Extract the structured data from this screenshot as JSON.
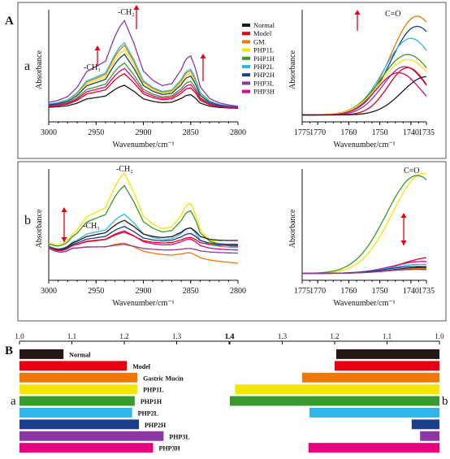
{
  "figure": {
    "panel_labels": [
      "A",
      "B"
    ],
    "row_labels": [
      "a",
      "b"
    ],
    "bar_side_labels": [
      "a",
      "b"
    ],
    "ch2": "-CH₂",
    "ch3": "-CH₃",
    "co": "C=O"
  },
  "colors": {
    "Normal": "#231815",
    "Model": "#e60012",
    "GM": "#ee7800",
    "PHP1L": "#f4e600",
    "PHP1H": "#3a9a2e",
    "PHP2L": "#2fb7e8",
    "PHP2H": "#1a3d8c",
    "PHP3L": "#8c37a5",
    "PHP3H": "#e4007f",
    "arrow": "#e60012"
  },
  "legend": {
    "items": [
      {
        "label": "Normal",
        "key": "Normal"
      },
      {
        "label": "Model",
        "key": "Model"
      },
      {
        "label": "GM",
        "key": "GM"
      },
      {
        "label": "PHP1L",
        "key": "PHP1L"
      },
      {
        "label": "PHP1H",
        "key": "PHP1H"
      },
      {
        "label": "PHP2L",
        "key": "PHP2L"
      },
      {
        "label": "PHP2H",
        "key": "PHP2H"
      },
      {
        "label": "PHP3L",
        "key": "PHP3L"
      },
      {
        "label": "PHP3H",
        "key": "PHP3H"
      }
    ]
  },
  "chart_data": [
    {
      "id": "Aa-left",
      "type": "line",
      "xlabel": "Wavenumber/cm⁻¹",
      "ylabel": "Absorbance",
      "xlim": [
        3000,
        2800
      ],
      "ylim": [
        0,
        1
      ],
      "xticks": [
        "3000",
        "2950",
        "2900",
        "2850",
        "2800"
      ],
      "x": [
        3000,
        2990,
        2980,
        2970,
        2960,
        2950,
        2940,
        2930,
        2925,
        2920,
        2910,
        2900,
        2890,
        2880,
        2870,
        2860,
        2855,
        2850,
        2845,
        2840,
        2830,
        2820,
        2810,
        2800
      ],
      "profile": [
        0.0,
        0.02,
        0.06,
        0.17,
        0.36,
        0.42,
        0.48,
        0.8,
        0.92,
        1.0,
        0.72,
        0.38,
        0.27,
        0.21,
        0.24,
        0.42,
        0.56,
        0.6,
        0.45,
        0.22,
        0.08,
        0.03,
        0.01,
        0.0
      ],
      "series": [
        {
          "key": "Normal",
          "scale": 0.27
        },
        {
          "key": "Model",
          "scale": 0.4
        },
        {
          "key": "GM",
          "scale": 0.72
        },
        {
          "key": "PHP1L",
          "scale": 0.67
        },
        {
          "key": "PHP1H",
          "scale": 0.52
        },
        {
          "key": "PHP2L",
          "scale": 0.75
        },
        {
          "key": "PHP2H",
          "scale": 0.62
        },
        {
          "key": "PHP3L",
          "scale": 1.0
        },
        {
          "key": "PHP3H",
          "scale": 0.46
        }
      ]
    },
    {
      "id": "Aa-right",
      "type": "line",
      "xlabel": "Wavenumber/cm⁻¹",
      "ylabel": "Absorbance",
      "xlim": [
        1775,
        1735
      ],
      "ylim": [
        0,
        1
      ],
      "xticks": [
        "1775",
        "1770",
        "1760",
        "1750",
        "1740",
        "1735"
      ],
      "series": [
        {
          "key": "GM",
          "peak": 0.98,
          "center": 1738,
          "width": 12
        },
        {
          "key": "PHP2H",
          "peak": 0.88,
          "center": 1738,
          "width": 12
        },
        {
          "key": "PHP2L",
          "peak": 0.76,
          "center": 1740,
          "width": 12
        },
        {
          "key": "PHP1H",
          "peak": 0.6,
          "center": 1741,
          "width": 12
        },
        {
          "key": "PHP1L",
          "peak": 0.55,
          "center": 1741,
          "width": 12
        },
        {
          "key": "PHP3L",
          "peak": 0.48,
          "center": 1742,
          "width": 10
        },
        {
          "key": "Model",
          "peak": 0.47,
          "center": 1741,
          "width": 9
        },
        {
          "key": "PHP3H",
          "peak": 0.42,
          "center": 1744,
          "width": 10
        },
        {
          "key": "Normal",
          "peak": 0.38,
          "center": 1735,
          "width": 11
        }
      ]
    },
    {
      "id": "Ab-left",
      "type": "line",
      "xlabel": "Wavenumber/cm⁻¹",
      "ylabel": "Absorbance",
      "xlim": [
        3000,
        2800
      ],
      "ylim": [
        -0.2,
        1
      ],
      "xticks": [
        "3000",
        "2950",
        "2900",
        "2850",
        "2800"
      ],
      "x": [
        3000,
        2990,
        2980,
        2970,
        2960,
        2950,
        2940,
        2930,
        2925,
        2920,
        2910,
        2900,
        2890,
        2880,
        2870,
        2860,
        2855,
        2850,
        2845,
        2840,
        2830,
        2820,
        2810,
        2800
      ],
      "profile": [
        0.0,
        0.02,
        0.06,
        0.17,
        0.36,
        0.42,
        0.48,
        0.8,
        0.92,
        1.0,
        0.72,
        0.38,
        0.27,
        0.21,
        0.24,
        0.42,
        0.56,
        0.6,
        0.45,
        0.22,
        0.08,
        0.03,
        0.01,
        0.0
      ],
      "series": [
        {
          "key": "PHP1L",
          "scale": 0.98,
          "tilt": 0.0
        },
        {
          "key": "PHP1H",
          "scale": 0.82,
          "tilt": 0.0
        },
        {
          "key": "PHP2L",
          "scale": 0.45,
          "tilt": 0.0
        },
        {
          "key": "Normal",
          "scale": 0.33,
          "tilt": 0.08
        },
        {
          "key": "PHP2H",
          "scale": 0.27,
          "tilt": 0.04
        },
        {
          "key": "PHP3H",
          "scale": 0.24,
          "tilt": -0.02
        },
        {
          "key": "Model",
          "scale": 0.2,
          "tilt": 0.03
        },
        {
          "key": "GM",
          "scale": 0.15,
          "tilt": -0.16
        },
        {
          "key": "PHP3L",
          "scale": 0.08,
          "tilt": -0.05
        }
      ]
    },
    {
      "id": "Ab-right",
      "type": "line",
      "xlabel": "Wavenumber/cm⁻¹",
      "ylabel": "Absorbance",
      "xlim": [
        1775,
        1735
      ],
      "ylim": [
        0,
        1
      ],
      "xticks": [
        "1775",
        "1770",
        "1760",
        "1750",
        "1740",
        "1735"
      ],
      "series": [
        {
          "key": "PHP1L",
          "peak": 1.0,
          "center": 1736,
          "width": 14
        },
        {
          "key": "PHP1H",
          "peak": 0.98,
          "center": 1738,
          "width": 14
        },
        {
          "key": "Model",
          "peak": 0.16,
          "center": 1733,
          "width": 14
        },
        {
          "key": "PHP3H",
          "peak": 0.12,
          "center": 1736,
          "width": 14
        },
        {
          "key": "PHP2L",
          "peak": 0.09,
          "center": 1737,
          "width": 14
        },
        {
          "key": "PHP2H",
          "peak": 0.07,
          "center": 1738,
          "width": 14
        },
        {
          "key": "Normal",
          "peak": 0.06,
          "center": 1736,
          "width": 14
        },
        {
          "key": "GM",
          "peak": 0.05,
          "center": 1736,
          "width": 14
        },
        {
          "key": "PHP3L",
          "peak": 0.04,
          "center": 1738,
          "width": 14
        }
      ]
    },
    {
      "id": "B-left",
      "type": "bar",
      "orientation": "horizontal",
      "xlim": [
        1.0,
        1.4
      ],
      "xticks": [
        "1.0",
        "1.1",
        "1.2",
        "1.3",
        "1.4"
      ],
      "categories": [
        "Normal",
        "Model",
        "Gastric Mucin",
        "PHP1L",
        "PHP1H",
        "PHP2L",
        "PHP2H",
        "PHP3L",
        "PHP3H"
      ],
      "keys": [
        "Normal",
        "Model",
        "GM",
        "PHP1L",
        "PHP1H",
        "PHP2L",
        "PHP2H",
        "PHP3L",
        "PHP3H"
      ],
      "values": [
        1.084,
        1.205,
        1.225,
        1.225,
        1.22,
        1.215,
        1.228,
        1.275,
        1.255
      ]
    },
    {
      "id": "B-right",
      "type": "bar",
      "orientation": "horizontal-reversed",
      "xlim": [
        1.4,
        1.0
      ],
      "xticks": [
        "1.4",
        "1.3",
        "1.2",
        "1.1",
        "1.0"
      ],
      "categories": [
        "Normal",
        "Model",
        "Gastric Mucin",
        "PHP1L",
        "PHP1H",
        "PHP2L",
        "PHP2H",
        "PHP3L",
        "PHP3H"
      ],
      "keys": [
        "Normal",
        "Model",
        "GM",
        "PHP1L",
        "PHP1H",
        "PHP2L",
        "PHP2H",
        "PHP3L",
        "PHP3H"
      ],
      "values": [
        1.197,
        1.2,
        1.262,
        1.39,
        1.4,
        1.248,
        1.053,
        1.037,
        1.25
      ]
    }
  ]
}
